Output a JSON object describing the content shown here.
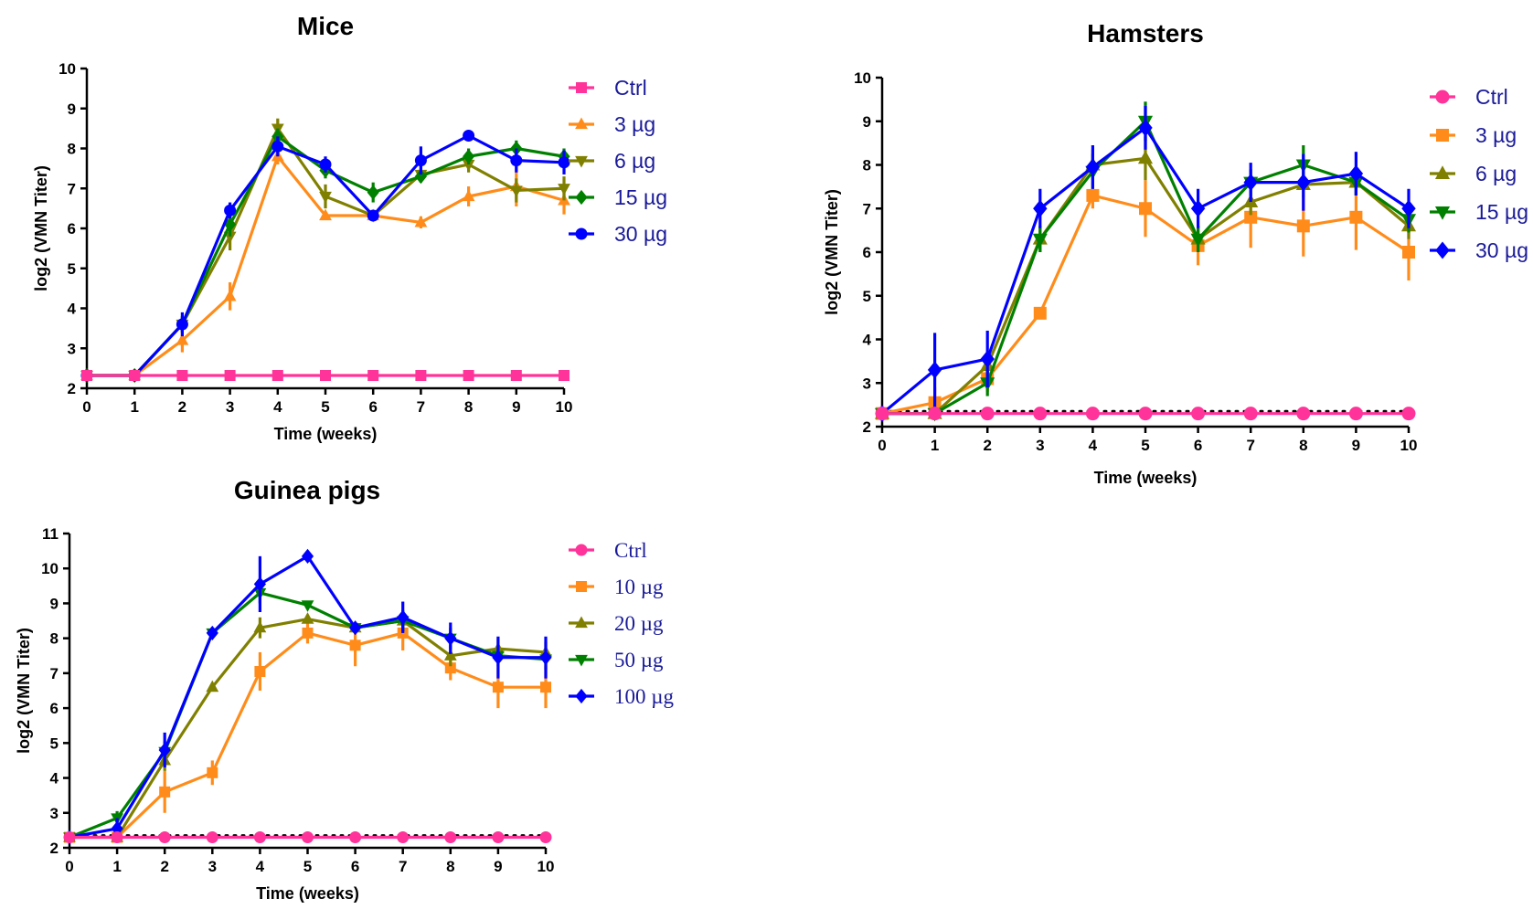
{
  "chart_data": [
    {
      "id": "mice",
      "type": "line",
      "title": "Mice",
      "xlabel": "Time (weeks)",
      "ylabel": "log2 (VMN Titer)",
      "x": [
        0,
        1,
        2,
        3,
        4,
        5,
        6,
        7,
        8,
        9,
        10
      ],
      "xticks": [
        "0",
        "1",
        "2",
        "3",
        "4",
        "5",
        "6",
        "7",
        "8",
        "9",
        "10"
      ],
      "yticks": [
        "2",
        "3",
        "4",
        "5",
        "6",
        "7",
        "8",
        "9",
        "10"
      ],
      "xlim": [
        0,
        10
      ],
      "ylim": [
        2,
        10
      ],
      "baseline": 2.32,
      "series": [
        {
          "name": "Ctrl",
          "color": "#ff3399",
          "marker": "square",
          "values": [
            2.32,
            2.32,
            2.32,
            2.32,
            2.32,
            2.32,
            2.32,
            2.32,
            2.32,
            2.32,
            2.32
          ],
          "errors": [
            0,
            0,
            0,
            0,
            0,
            0,
            0,
            0,
            0,
            0,
            0
          ]
        },
        {
          "name": "3 µg",
          "color": "#ff8c1a",
          "marker": "triangle-up",
          "values": [
            2.32,
            2.32,
            3.2,
            4.3,
            7.8,
            6.32,
            6.32,
            6.15,
            6.8,
            7.05,
            6.7
          ],
          "errors": [
            0,
            0,
            0.3,
            0.35,
            0.2,
            0,
            0,
            0.15,
            0.25,
            0.5,
            0.35
          ]
        },
        {
          "name": "6 µg",
          "color": "#808000",
          "marker": "triangle-down",
          "values": [
            2.32,
            2.32,
            3.6,
            5.8,
            8.5,
            6.8,
            6.32,
            7.35,
            7.6,
            6.95,
            7.0
          ],
          "errors": [
            0,
            0,
            0.2,
            0.35,
            0.25,
            0.3,
            0,
            0.2,
            0.2,
            0.3,
            0.3
          ]
        },
        {
          "name": "15 µg",
          "color": "#008000",
          "marker": "diamond",
          "values": [
            2.32,
            2.32,
            3.6,
            6.1,
            8.3,
            7.45,
            6.9,
            7.3,
            7.8,
            8.0,
            7.8
          ],
          "errors": [
            0,
            0,
            0.2,
            0.3,
            0.2,
            0.2,
            0.25,
            0.15,
            0.2,
            0.2,
            0.2
          ]
        },
        {
          "name": "30 µg",
          "color": "#0000ff",
          "marker": "circle",
          "values": [
            2.32,
            2.32,
            3.6,
            6.45,
            8.05,
            7.6,
            6.32,
            7.7,
            8.32,
            7.7,
            7.65
          ],
          "errors": [
            0,
            0,
            0.3,
            0.2,
            0.25,
            0.2,
            0,
            0.35,
            0,
            0.3,
            0.3
          ]
        }
      ]
    },
    {
      "id": "hamsters",
      "type": "line",
      "title": "Hamsters",
      "xlabel": "Time (weeks)",
      "ylabel": "log2 (VMN Titer)",
      "x": [
        0,
        1,
        2,
        3,
        4,
        5,
        6,
        7,
        8,
        9,
        10
      ],
      "xticks": [
        "0",
        "1",
        "2",
        "3",
        "4",
        "5",
        "6",
        "7",
        "8",
        "9",
        "10"
      ],
      "yticks": [
        "2",
        "3",
        "4",
        "5",
        "6",
        "7",
        "8",
        "9",
        "10"
      ],
      "xlim": [
        0,
        10
      ],
      "ylim": [
        2,
        10
      ],
      "baseline": 2.35,
      "series": [
        {
          "name": "Ctrl",
          "color": "#ff3399",
          "marker": "circle",
          "values": [
            2.3,
            2.3,
            2.3,
            2.3,
            2.3,
            2.3,
            2.3,
            2.3,
            2.3,
            2.3,
            2.3
          ],
          "errors": [
            0,
            0,
            0,
            0,
            0,
            0,
            0,
            0,
            0,
            0,
            0
          ]
        },
        {
          "name": "3 µg",
          "color": "#ff8c1a",
          "marker": "square",
          "values": [
            2.3,
            2.55,
            3.1,
            4.6,
            7.3,
            7.0,
            6.15,
            6.8,
            6.6,
            6.8,
            6.0
          ],
          "errors": [
            0,
            0.35,
            0.3,
            0,
            0.3,
            0.65,
            0.45,
            0.7,
            0.7,
            0.75,
            0.65
          ]
        },
        {
          "name": "6 µg",
          "color": "#808000",
          "marker": "triangle-up",
          "values": [
            2.3,
            2.3,
            3.4,
            6.3,
            8.0,
            8.15,
            6.3,
            7.15,
            7.55,
            7.6,
            6.6
          ],
          "errors": [
            0,
            0,
            0.3,
            0.3,
            0.35,
            0.5,
            0.3,
            0.3,
            0.3,
            0.3,
            0.3
          ]
        },
        {
          "name": "15 µg",
          "color": "#008000",
          "marker": "triangle-down",
          "values": [
            2.3,
            2.3,
            3.0,
            6.3,
            7.85,
            9.0,
            6.3,
            7.6,
            8.0,
            7.6,
            6.75
          ],
          "errors": [
            0,
            0,
            0.3,
            0.3,
            0.4,
            0.45,
            0.3,
            0.3,
            0.45,
            0.3,
            0.3
          ]
        },
        {
          "name": "30 µg",
          "color": "#0000ff",
          "marker": "diamond",
          "values": [
            2.3,
            3.3,
            3.55,
            7.0,
            7.95,
            8.85,
            7.0,
            7.6,
            7.6,
            7.8,
            7.0
          ],
          "errors": [
            0,
            0.85,
            0.65,
            0.45,
            0.5,
            0.5,
            0.45,
            0.45,
            0.65,
            0.5,
            0.45
          ]
        }
      ]
    },
    {
      "id": "guinea-pigs",
      "type": "line",
      "title": "Guinea pigs",
      "xlabel": "Time (weeks)",
      "ylabel": "log2 (VMN Titer)",
      "x": [
        0,
        1,
        2,
        3,
        4,
        5,
        6,
        7,
        8,
        9,
        10
      ],
      "xticks": [
        "0",
        "1",
        "2",
        "3",
        "4",
        "5",
        "6",
        "7",
        "8",
        "9",
        "10"
      ],
      "yticks": [
        "2",
        "3",
        "4",
        "5",
        "6",
        "7",
        "8",
        "9",
        "10",
        "11"
      ],
      "xlim": [
        0,
        10
      ],
      "ylim": [
        2,
        11
      ],
      "baseline": 2.35,
      "series": [
        {
          "name": "Ctrl",
          "color": "#ff3399",
          "marker": "circle",
          "values": [
            2.3,
            2.3,
            2.3,
            2.3,
            2.3,
            2.3,
            2.3,
            2.3,
            2.3,
            2.3,
            2.3
          ],
          "errors": [
            0,
            0,
            0,
            0,
            0,
            0,
            0,
            0,
            0,
            0,
            0
          ]
        },
        {
          "name": "10 µg",
          "color": "#ff8c1a",
          "marker": "square",
          "values": [
            2.3,
            2.3,
            3.6,
            4.15,
            7.05,
            8.15,
            7.8,
            8.15,
            7.15,
            6.6,
            6.6
          ],
          "errors": [
            0,
            0,
            0.6,
            0.35,
            0.55,
            0.3,
            0.6,
            0.5,
            0.35,
            0.6,
            0.6
          ]
        },
        {
          "name": "20 µg",
          "color": "#808000",
          "marker": "triangle-up",
          "values": [
            2.3,
            2.3,
            4.5,
            6.6,
            8.3,
            8.55,
            8.3,
            8.5,
            7.5,
            7.7,
            7.6
          ],
          "errors": [
            0,
            0,
            0.3,
            0,
            0.3,
            0,
            0,
            0.3,
            0.3,
            0.3,
            0.3
          ]
        },
        {
          "name": "50 µg",
          "color": "#008000",
          "marker": "triangle-down",
          "values": [
            2.3,
            2.85,
            4.75,
            8.15,
            9.3,
            8.95,
            8.3,
            8.5,
            8.0,
            7.5,
            7.4
          ],
          "errors": [
            0,
            0.2,
            0.3,
            0.15,
            0.3,
            0,
            0,
            0.3,
            0.3,
            0.3,
            0.3
          ]
        },
        {
          "name": "100 µg",
          "color": "#0000ff",
          "marker": "diamond",
          "values": [
            2.3,
            2.55,
            4.8,
            8.15,
            9.55,
            10.35,
            8.3,
            8.6,
            8.0,
            7.45,
            7.45
          ],
          "errors": [
            0,
            0.3,
            0.5,
            0.15,
            0.8,
            0,
            0,
            0.45,
            0.45,
            0.6,
            0.6
          ]
        }
      ]
    }
  ]
}
